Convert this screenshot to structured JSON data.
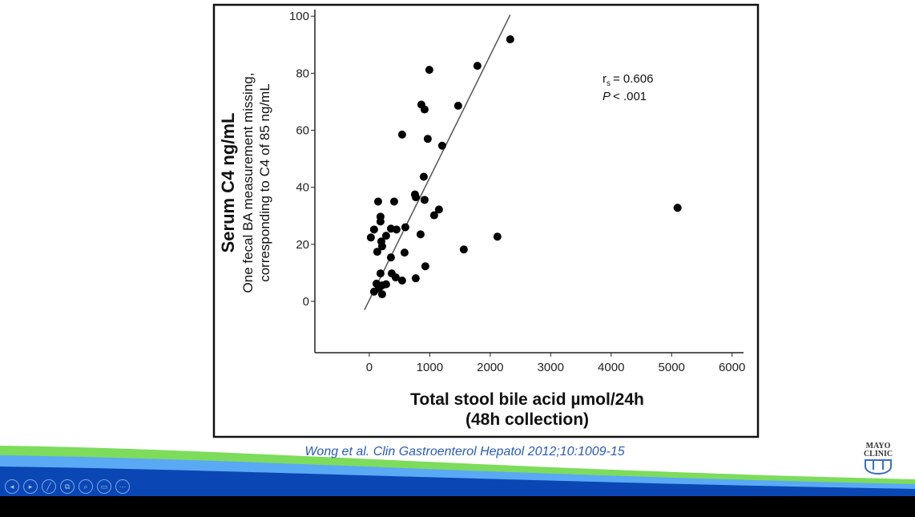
{
  "chart_data": {
    "type": "scatter",
    "title": "",
    "xlabel": "Total stool bile acid µmol/24h",
    "xlabel_line2": "(48h collection)",
    "ylabel": "Serum C4 ng/mL",
    "ylabel_note_line1": "One fecal BA measurement missing,",
    "ylabel_note_line2": "corresponding to C4 of 85 ng/mL",
    "xlim": [
      -900,
      6190
    ],
    "ylim": [
      -18,
      104
    ],
    "x_ticks": [
      0,
      1000,
      2000,
      3000,
      4000,
      5000,
      6000
    ],
    "x_tick_labels": [
      "0",
      "1000",
      "2000",
      "3000",
      "4000",
      "5000",
      "6000"
    ],
    "y_ticks": [
      0,
      20,
      40,
      60,
      80,
      100
    ],
    "y_tick_labels": [
      "0",
      "20",
      "40",
      "60",
      "80",
      "100"
    ],
    "grid": false,
    "annotation": {
      "rs_label": "r",
      "rs_sub": "s",
      "rs_value": "= 0.606",
      "p_label": "P",
      "p_value": "< .001"
    },
    "fit_line": {
      "x": [
        -80,
        2331
      ],
      "y": [
        -3,
        100.5
      ]
    },
    "points": [
      [
        2331,
        91.9
      ],
      [
        1788,
        82.6
      ],
      [
        993,
        81.2
      ],
      [
        1470,
        68.6
      ],
      [
        861,
        69
      ],
      [
        914,
        67.3
      ],
      [
        543,
        58.5
      ],
      [
        967,
        57
      ],
      [
        1205,
        54.6
      ],
      [
        901,
        43.7
      ],
      [
        755,
        37.5
      ],
      [
        770,
        36.5
      ],
      [
        914,
        35.6
      ],
      [
        146,
        35
      ],
      [
        411,
        35
      ],
      [
        1152,
        32.2
      ],
      [
        1073,
        30.2
      ],
      [
        185,
        29.7
      ],
      [
        185,
        28
      ],
      [
        596,
        26
      ],
      [
        358,
        25.5
      ],
      [
        450,
        25.2
      ],
      [
        79,
        25.2
      ],
      [
        26,
        22.4
      ],
      [
        848,
        23.5
      ],
      [
        2119,
        22.7
      ],
      [
        278,
        23
      ],
      [
        199,
        21
      ],
      [
        212,
        19.3
      ],
      [
        132,
        17.4
      ],
      [
        583,
        17.1
      ],
      [
        1563,
        18.2
      ],
      [
        358,
        15.4
      ],
      [
        927,
        12.3
      ],
      [
        185,
        9.8
      ],
      [
        371,
        9.8
      ],
      [
        437,
        8.4
      ],
      [
        543,
        7.3
      ],
      [
        768,
        8.1
      ],
      [
        119,
        6.2
      ],
      [
        212,
        5.6
      ],
      [
        278,
        6
      ],
      [
        79,
        3.4
      ],
      [
        212,
        2.5
      ],
      [
        159,
        4.5
      ],
      [
        5099,
        32.8
      ]
    ]
  },
  "citation": "Wong et al. Clin Gastroenterol Hepatol 2012;10:1009-15",
  "logo": {
    "line1": "MAYO",
    "line2": "CLINIC"
  },
  "controls": [
    {
      "name": "previous-slide-button",
      "glyph": "◂"
    },
    {
      "name": "next-slide-button",
      "glyph": "▸"
    },
    {
      "name": "pen-tool-button",
      "glyph": "╱"
    },
    {
      "name": "see-all-slides-button",
      "glyph": "⧉"
    },
    {
      "name": "zoom-button",
      "glyph": "⌕"
    },
    {
      "name": "subtitles-button",
      "glyph": "▭"
    },
    {
      "name": "more-options-button",
      "glyph": "⋯"
    }
  ],
  "colors": {
    "green": "#7ddc5c",
    "light_blue": "#5aa9f5",
    "dark_blue": "#0a47b4",
    "citation": "#2a5cb8"
  }
}
